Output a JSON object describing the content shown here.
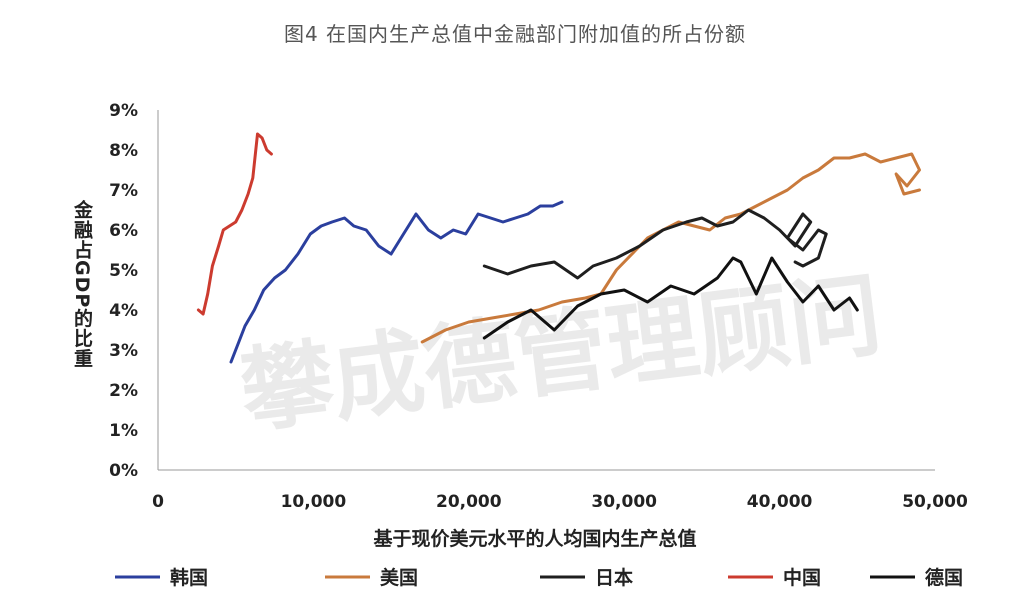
{
  "title": "图4 在国内生产总值中金融部门附加值的所占份额",
  "watermark": "攀成德管理顾问",
  "chart_data": {
    "type": "line",
    "xlabel": "基于现价美元水平的人均国内生产总值",
    "ylabel": "金融占GDP的比重",
    "xlim": [
      0,
      50000
    ],
    "ylim": [
      0,
      9
    ],
    "x_ticks": [
      "0",
      "10,000",
      "20,000",
      "30,000",
      "40,000",
      "50,000"
    ],
    "y_ticks": [
      "0%",
      "1%",
      "2%",
      "3%",
      "4%",
      "5%",
      "6%",
      "7%",
      "8%",
      "9%"
    ],
    "grid": false,
    "legend_position": "bottom",
    "series": [
      {
        "name": "韩国",
        "color": "#2b3f9e",
        "x": [
          4700,
          5200,
          5600,
          6200,
          6800,
          7500,
          8200,
          9000,
          9800,
          10500,
          11200,
          12000,
          12600,
          13400,
          14200,
          15000,
          15800,
          16600,
          17400,
          18200,
          19000,
          19800,
          20600,
          21400,
          22200,
          23000,
          23800,
          24600,
          25400,
          26000
        ],
        "y": [
          2.7,
          3.2,
          3.6,
          4.0,
          4.5,
          4.8,
          5.0,
          5.4,
          5.9,
          6.1,
          6.2,
          6.3,
          6.1,
          6.0,
          5.6,
          5.4,
          5.9,
          6.4,
          6.0,
          5.8,
          6.0,
          5.9,
          6.4,
          6.3,
          6.2,
          6.3,
          6.4,
          6.6,
          6.6,
          6.7
        ]
      },
      {
        "name": "美国",
        "color": "#c97a3c",
        "x": [
          17000,
          18500,
          20000,
          21500,
          23000,
          24500,
          26000,
          27500,
          28500,
          29500,
          30500,
          31500,
          32500,
          33500,
          34500,
          35500,
          36500,
          37500,
          38500,
          39500,
          40500,
          41500,
          42500,
          43500,
          44500,
          45500,
          46500,
          47500,
          48500,
          49000,
          48200,
          47500,
          48000,
          49000
        ],
        "y": [
          3.2,
          3.5,
          3.7,
          3.8,
          3.9,
          4.0,
          4.2,
          4.3,
          4.4,
          5.0,
          5.4,
          5.8,
          6.0,
          6.2,
          6.1,
          6.0,
          6.3,
          6.4,
          6.6,
          6.8,
          7.0,
          7.3,
          7.5,
          7.8,
          7.8,
          7.9,
          7.7,
          7.8,
          7.9,
          7.5,
          7.1,
          7.4,
          6.9,
          7.0
        ]
      },
      {
        "name": "日本",
        "color": "#1f1f1f",
        "x": [
          21000,
          22500,
          24000,
          25500,
          27000,
          28000,
          29500,
          31000,
          32500,
          34000,
          35000,
          36000,
          37000,
          38000,
          39000,
          40000,
          41000,
          42000,
          41500,
          40500,
          41500,
          42500,
          43000,
          42500,
          41500,
          41000
        ],
        "y": [
          5.1,
          4.9,
          5.1,
          5.2,
          4.8,
          5.1,
          5.3,
          5.6,
          6.0,
          6.2,
          6.3,
          6.1,
          6.2,
          6.5,
          6.3,
          6.0,
          5.6,
          6.2,
          6.4,
          5.8,
          5.5,
          6.0,
          5.9,
          5.3,
          5.1,
          5.2
        ]
      },
      {
        "name": "中国",
        "color": "#cc3b2f",
        "x": [
          2600,
          2900,
          3200,
          3500,
          3900,
          4200,
          4600,
          5000,
          5400,
          5800,
          6100,
          6400,
          6700,
          7000,
          7300
        ],
        "y": [
          4.0,
          3.9,
          4.4,
          5.1,
          5.6,
          6.0,
          6.1,
          6.2,
          6.5,
          6.9,
          7.3,
          8.4,
          8.3,
          8.0,
          7.9
        ]
      },
      {
        "name": "德国",
        "color": "#111111",
        "x": [
          21000,
          22500,
          24000,
          25500,
          27000,
          28500,
          30000,
          31500,
          33000,
          34500,
          36000,
          37000,
          37500,
          38500,
          39500,
          40500,
          41500,
          42500,
          43500,
          44500,
          45000
        ],
        "y": [
          3.3,
          3.7,
          4.0,
          3.5,
          4.1,
          4.4,
          4.5,
          4.2,
          4.6,
          4.4,
          4.8,
          5.3,
          5.2,
          4.4,
          5.3,
          4.7,
          4.2,
          4.6,
          4.0,
          4.3,
          4.0
        ]
      }
    ]
  }
}
